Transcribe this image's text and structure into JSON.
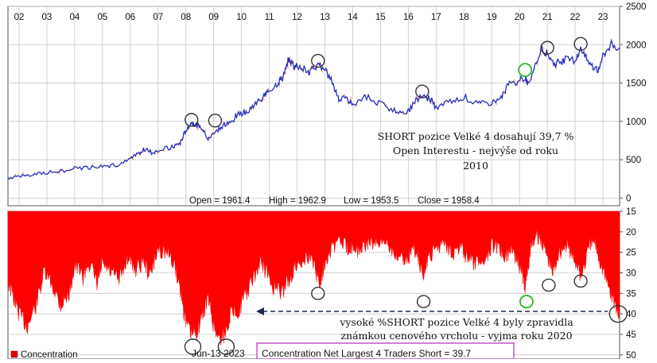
{
  "chart_data": [
    {
      "type": "line",
      "years": [
        "02",
        "03",
        "04",
        "05",
        "06",
        "07",
        "08",
        "09",
        "10",
        "11",
        "12",
        "13",
        "14",
        "15",
        "16",
        "17",
        "18",
        "19",
        "20",
        "21",
        "22",
        "23"
      ],
      "yticks": [
        0,
        500,
        1000,
        1500,
        2000,
        2500
      ],
      "ylim": [
        -100,
        2500
      ],
      "xlim": [
        2001.6,
        2023.6
      ],
      "series": [
        {
          "color": "#2030c0",
          "points": [
            [
              2001.6,
              265
            ],
            [
              2002.0,
              285
            ],
            [
              2002.5,
              305
            ],
            [
              2003.0,
              330
            ],
            [
              2003.5,
              350
            ],
            [
              2004.0,
              385
            ],
            [
              2004.5,
              400
            ],
            [
              2005.0,
              420
            ],
            [
              2005.5,
              430
            ],
            [
              2006.0,
              500
            ],
            [
              2006.3,
              580
            ],
            [
              2006.5,
              640
            ],
            [
              2006.8,
              590
            ],
            [
              2007.0,
              630
            ],
            [
              2007.5,
              660
            ],
            [
              2007.8,
              720
            ],
            [
              2008.0,
              890
            ],
            [
              2008.2,
              990
            ],
            [
              2008.4,
              950
            ],
            [
              2008.6,
              920
            ],
            [
              2008.8,
              760
            ],
            [
              2009.0,
              860
            ],
            [
              2009.3,
              940
            ],
            [
              2009.6,
              980
            ],
            [
              2009.9,
              1100
            ],
            [
              2010.2,
              1130
            ],
            [
              2010.5,
              1230
            ],
            [
              2010.8,
              1330
            ],
            [
              2011.0,
              1400
            ],
            [
              2011.3,
              1500
            ],
            [
              2011.5,
              1580
            ],
            [
              2011.7,
              1820
            ],
            [
              2011.9,
              1720
            ],
            [
              2012.1,
              1720
            ],
            [
              2012.4,
              1620
            ],
            [
              2012.6,
              1700
            ],
            [
              2012.8,
              1730
            ],
            [
              2013.0,
              1670
            ],
            [
              2013.3,
              1480
            ],
            [
              2013.5,
              1300
            ],
            [
              2013.8,
              1280
            ],
            [
              2014.0,
              1230
            ],
            [
              2014.5,
              1320
            ],
            [
              2015.0,
              1230
            ],
            [
              2015.5,
              1140
            ],
            [
              2015.9,
              1070
            ],
            [
              2016.2,
              1250
            ],
            [
              2016.5,
              1330
            ],
            [
              2016.8,
              1290
            ],
            [
              2017.0,
              1170
            ],
            [
              2017.5,
              1260
            ],
            [
              2018.0,
              1320
            ],
            [
              2018.5,
              1220
            ],
            [
              2018.9,
              1240
            ],
            [
              2019.3,
              1290
            ],
            [
              2019.6,
              1480
            ],
            [
              2019.9,
              1500
            ],
            [
              2020.2,
              1580
            ],
            [
              2020.3,
              1480
            ],
            [
              2020.6,
              1780
            ],
            [
              2020.8,
              1960
            ],
            [
              2021.0,
              1880
            ],
            [
              2021.3,
              1750
            ],
            [
              2021.6,
              1800
            ],
            [
              2022.0,
              1800
            ],
            [
              2022.2,
              1940
            ],
            [
              2022.5,
              1760
            ],
            [
              2022.8,
              1650
            ],
            [
              2023.0,
              1860
            ],
            [
              2023.3,
              2000
            ],
            [
              2023.6,
              1960
            ]
          ]
        }
      ],
      "readout": {
        "open": "Open = 1961.4",
        "high": "High = 1962.9",
        "low": "Low = 1953.5",
        "close": "Close = 1958.4"
      },
      "markers": [
        {
          "x": 2008.2,
          "y": 1020,
          "color": "#333333"
        },
        {
          "x": 2009.05,
          "y": 1010,
          "color": "#333333"
        },
        {
          "x": 2012.75,
          "y": 1790,
          "color": "#333333"
        },
        {
          "x": 2016.5,
          "y": 1390,
          "color": "#333333"
        },
        {
          "x": 2020.2,
          "y": 1670,
          "color": "#22bb22"
        },
        {
          "x": 2021.0,
          "y": 1960,
          "color": "#333333"
        },
        {
          "x": 2022.2,
          "y": 2010,
          "color": "#333333"
        }
      ],
      "annotation": [
        "SHORT pozice Velké 4 dosahují 39,7 %",
        "Open Interestu - nejvýše od roku",
        "2010"
      ]
    },
    {
      "type": "area",
      "color": "#ff0000",
      "yticks": [
        15,
        20,
        25,
        30,
        35,
        40,
        45,
        50
      ],
      "ylim": [
        15,
        51
      ],
      "inverted": true,
      "xlim": [
        2001.6,
        2023.6
      ],
      "points": [
        [
          2001.6,
          32
        ],
        [
          2001.8,
          36
        ],
        [
          2002.0,
          40
        ],
        [
          2002.3,
          43
        ],
        [
          2002.6,
          38
        ],
        [
          2002.9,
          30
        ],
        [
          2003.2,
          33
        ],
        [
          2003.5,
          38
        ],
        [
          2003.8,
          35
        ],
        [
          2004.0,
          28
        ],
        [
          2004.3,
          31
        ],
        [
          2004.5,
          27
        ],
        [
          2004.8,
          33
        ],
        [
          2005.0,
          28
        ],
        [
          2005.3,
          30
        ],
        [
          2005.6,
          32
        ],
        [
          2005.9,
          26
        ],
        [
          2006.2,
          29
        ],
        [
          2006.5,
          27
        ],
        [
          2006.7,
          31
        ],
        [
          2007.0,
          24
        ],
        [
          2007.3,
          25
        ],
        [
          2007.6,
          28
        ],
        [
          2007.8,
          34
        ],
        [
          2008.0,
          42
        ],
        [
          2008.2,
          45
        ],
        [
          2008.4,
          44
        ],
        [
          2008.6,
          40
        ],
        [
          2008.8,
          36
        ],
        [
          2009.0,
          43
        ],
        [
          2009.2,
          46
        ],
        [
          2009.4,
          45
        ],
        [
          2009.6,
          40
        ],
        [
          2009.9,
          39
        ],
        [
          2010.1,
          36
        ],
        [
          2010.4,
          32
        ],
        [
          2010.7,
          27
        ],
        [
          2010.9,
          30
        ],
        [
          2011.1,
          33
        ],
        [
          2011.4,
          35
        ],
        [
          2011.7,
          32
        ],
        [
          2011.9,
          29
        ],
        [
          2012.1,
          27
        ],
        [
          2012.4,
          26
        ],
        [
          2012.6,
          27
        ],
        [
          2012.8,
          33
        ],
        [
          2013.0,
          27
        ],
        [
          2013.2,
          24
        ],
        [
          2013.5,
          22
        ],
        [
          2013.8,
          24
        ],
        [
          2014.0,
          23
        ],
        [
          2014.3,
          25
        ],
        [
          2014.6,
          22
        ],
        [
          2014.9,
          24
        ],
        [
          2015.2,
          22
        ],
        [
          2015.5,
          25
        ],
        [
          2015.8,
          27
        ],
        [
          2016.0,
          26
        ],
        [
          2016.3,
          24
        ],
        [
          2016.5,
          31
        ],
        [
          2016.7,
          27
        ],
        [
          2017.0,
          24
        ],
        [
          2017.3,
          22
        ],
        [
          2017.6,
          25
        ],
        [
          2017.9,
          24
        ],
        [
          2018.2,
          27
        ],
        [
          2018.5,
          28
        ],
        [
          2018.8,
          26
        ],
        [
          2019.0,
          23
        ],
        [
          2019.3,
          24
        ],
        [
          2019.5,
          26
        ],
        [
          2019.7,
          24
        ],
        [
          2019.9,
          26
        ],
        [
          2020.1,
          30
        ],
        [
          2020.2,
          34
        ],
        [
          2020.4,
          24
        ],
        [
          2020.6,
          21
        ],
        [
          2020.8,
          22
        ],
        [
          2021.0,
          26
        ],
        [
          2021.2,
          30
        ],
        [
          2021.4,
          25
        ],
        [
          2021.7,
          23
        ],
        [
          2021.9,
          26
        ],
        [
          2022.1,
          28
        ],
        [
          2022.2,
          31
        ],
        [
          2022.5,
          24
        ],
        [
          2022.7,
          22
        ],
        [
          2022.9,
          27
        ],
        [
          2023.1,
          31
        ],
        [
          2023.3,
          35
        ],
        [
          2023.5,
          39
        ],
        [
          2023.6,
          39.7
        ]
      ],
      "markers": [
        {
          "x": 2008.25,
          "y": 48,
          "color": "#333333"
        },
        {
          "x": 2009.45,
          "y": 48,
          "color": "#333333"
        },
        {
          "x": 2012.75,
          "y": 35,
          "color": "#333333"
        },
        {
          "x": 2016.55,
          "y": 37,
          "color": "#333333"
        },
        {
          "x": 2020.25,
          "y": 37,
          "color": "#22bb22"
        },
        {
          "x": 2021.05,
          "y": 33,
          "color": "#333333"
        },
        {
          "x": 2022.2,
          "y": 32,
          "color": "#333333"
        },
        {
          "x": 2023.55,
          "y": 40,
          "color": "#333333"
        }
      ],
      "annotation": [
        "vysoké %SHORT pozice Velké 4 byly zpravidla",
        "známkou cenového vrcholu - vyjma roku 2020"
      ],
      "legend": "Concentration",
      "date_label": "Jun-13  2023",
      "box_label": "Concentration Net Largest 4 Traders Short = 39.7"
    }
  ]
}
